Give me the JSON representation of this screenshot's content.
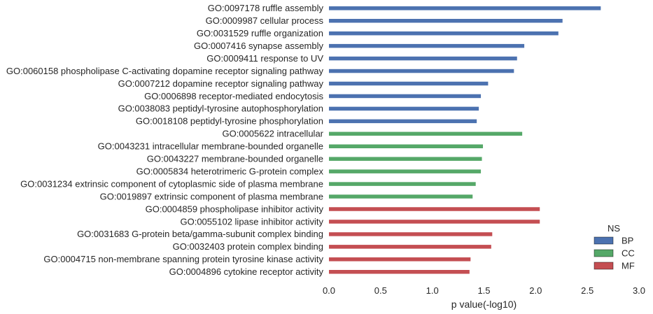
{
  "chart_data": {
    "type": "bar",
    "orientation": "horizontal",
    "title": "",
    "xlabel": "p value(-log10)",
    "ylabel": "",
    "xlim": [
      0,
      3.0
    ],
    "xticks": [
      "0.0",
      "0.5",
      "1.0",
      "1.5",
      "2.0",
      "2.5",
      "3.0"
    ],
    "grid": false,
    "legend": {
      "title": "NS",
      "placement": "bottom-right",
      "entries": [
        {
          "name": "BP",
          "color": "#4c72b0"
        },
        {
          "name": "CC",
          "color": "#55a868"
        },
        {
          "name": "MF",
          "color": "#c44e52"
        }
      ]
    },
    "bars": [
      {
        "label": "GO:0097178 ruffle assembly",
        "value": 2.63,
        "group": "BP"
      },
      {
        "label": "GO:0009987 cellular process",
        "value": 2.26,
        "group": "BP"
      },
      {
        "label": "GO:0031529 ruffle organization",
        "value": 2.22,
        "group": "BP"
      },
      {
        "label": "GO:0007416 synapse assembly",
        "value": 1.89,
        "group": "BP"
      },
      {
        "label": "GO:0009411 response to UV",
        "value": 1.82,
        "group": "BP"
      },
      {
        "label": "GO:0060158 phospholipase C-activating dopamine receptor signaling pathway",
        "value": 1.79,
        "group": "BP"
      },
      {
        "label": "GO:0007212 dopamine receptor signaling pathway",
        "value": 1.54,
        "group": "BP"
      },
      {
        "label": "GO:0006898 receptor-mediated endocytosis",
        "value": 1.47,
        "group": "BP"
      },
      {
        "label": "GO:0038083 peptidyl-tyrosine autophosphorylation",
        "value": 1.45,
        "group": "BP"
      },
      {
        "label": "GO:0018108 peptidyl-tyrosine phosphorylation",
        "value": 1.43,
        "group": "BP"
      },
      {
        "label": "GO:0005622 intracellular",
        "value": 1.87,
        "group": "CC"
      },
      {
        "label": "GO:0043231 intracellular membrane-bounded organelle",
        "value": 1.49,
        "group": "CC"
      },
      {
        "label": "GO:0043227 membrane-bounded organelle",
        "value": 1.48,
        "group": "CC"
      },
      {
        "label": "GO:0005834 heterotrimeric G-protein complex",
        "value": 1.47,
        "group": "CC"
      },
      {
        "label": "GO:0031234 extrinsic component of cytoplasmic side of plasma membrane",
        "value": 1.42,
        "group": "CC"
      },
      {
        "label": "GO:0019897 extrinsic component of plasma membrane",
        "value": 1.39,
        "group": "CC"
      },
      {
        "label": "GO:0004859 phospholipase inhibitor activity",
        "value": 2.04,
        "group": "MF"
      },
      {
        "label": "GO:0055102 lipase inhibitor activity",
        "value": 2.04,
        "group": "MF"
      },
      {
        "label": "GO:0031683 G-protein beta/gamma-subunit complex binding",
        "value": 1.58,
        "group": "MF"
      },
      {
        "label": "GO:0032403 protein complex binding",
        "value": 1.57,
        "group": "MF"
      },
      {
        "label": "GO:0004715 non-membrane spanning protein tyrosine kinase activity",
        "value": 1.37,
        "group": "MF"
      },
      {
        "label": "GO:0004896 cytokine receptor activity",
        "value": 1.36,
        "group": "MF"
      }
    ]
  }
}
